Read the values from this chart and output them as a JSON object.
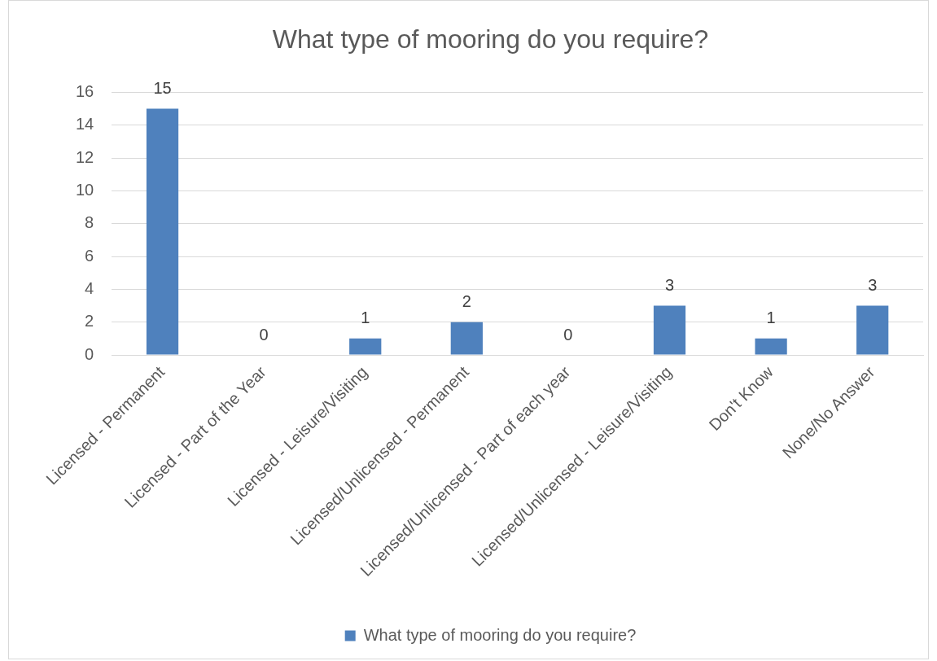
{
  "chart_data": {
    "type": "bar",
    "title": "What type of mooring do you require?",
    "categories": [
      "Licensed - Permanent",
      "Licensed - Part of the Year",
      "Licensed - Leisure/Visiting",
      "Licensed/Unlicensed - Permanent",
      "Licensed/Unlicensed - Part of each year",
      "Licensed/Unlicensed - Leisure/Visiting",
      "Don't Know",
      "None/No Answer"
    ],
    "series": [
      {
        "name": "What type of mooring do you require?",
        "color": "#4f81bd",
        "values": [
          15,
          0,
          1,
          2,
          0,
          3,
          1,
          3
        ]
      }
    ],
    "ylim": [
      0,
      16
    ],
    "yticks": [
      0,
      2,
      4,
      6,
      8,
      10,
      12,
      14,
      16
    ],
    "grid": "y",
    "legend": "bottom",
    "data_labels": true
  }
}
